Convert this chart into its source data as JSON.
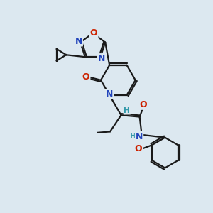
{
  "background_color": "#dce8f0",
  "bond_color": "#1a1a1a",
  "bond_width": 1.6,
  "atom_colors": {
    "C": "#1a1a1a",
    "N": "#2244bb",
    "O": "#cc2200",
    "H": "#3399aa"
  },
  "font_size_atom": 9,
  "font_size_small": 7.5
}
